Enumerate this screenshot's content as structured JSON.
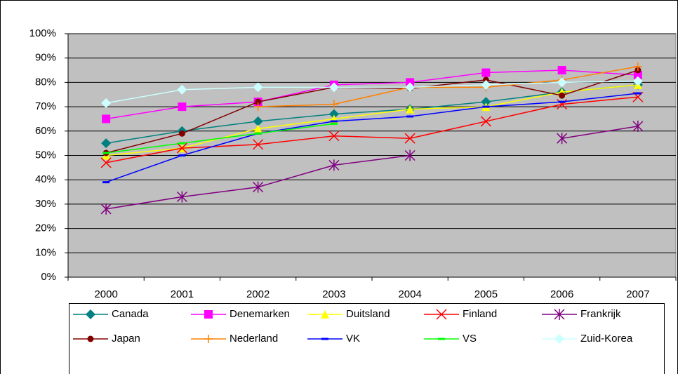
{
  "chart_data": {
    "type": "line",
    "categories": [
      "2000",
      "2001",
      "2002",
      "2003",
      "2004",
      "2005",
      "2006",
      "2007"
    ],
    "ylim": [
      0,
      100
    ],
    "yticks": [
      {
        "value": 0,
        "label": "0%"
      },
      {
        "value": 10,
        "label": "10%"
      },
      {
        "value": 20,
        "label": "20%"
      },
      {
        "value": 30,
        "label": "30%"
      },
      {
        "value": 40,
        "label": "40%"
      },
      {
        "value": 50,
        "label": "50%"
      },
      {
        "value": 60,
        "label": "60%"
      },
      {
        "value": 70,
        "label": "70%"
      },
      {
        "value": 80,
        "label": "80%"
      },
      {
        "value": 90,
        "label": "90%"
      },
      {
        "value": 100,
        "label": "100%"
      }
    ],
    "grid": true,
    "plot_background": "#c0c0c0",
    "legend": "bottom",
    "series": [
      {
        "name": "Canada",
        "color": "#008080",
        "marker": "diamond",
        "values": [
          55,
          60,
          64,
          67,
          69,
          72,
          76,
          79
        ]
      },
      {
        "name": "Denemarken",
        "color": "#ff00ff",
        "marker": "square",
        "values": [
          65,
          70,
          72,
          79,
          80,
          84,
          85,
          83
        ]
      },
      {
        "name": "Duitsland",
        "color": "#ffff00",
        "marker": "triangle",
        "values": [
          50,
          53,
          61,
          65,
          69,
          70,
          76,
          79
        ]
      },
      {
        "name": "Finland",
        "color": "#ff0000",
        "marker": "x",
        "values": [
          47,
          53,
          54.5,
          58,
          57,
          64,
          71,
          74
        ]
      },
      {
        "name": "Frankrijk",
        "color": "#800080",
        "marker": "star",
        "values": [
          28,
          33,
          37,
          46,
          50,
          null,
          57,
          62
        ]
      },
      {
        "name": "Japan",
        "color": "#800000",
        "marker": "circle",
        "values": [
          51,
          59,
          72,
          78,
          77.5,
          81,
          74.6,
          85
        ]
      },
      {
        "name": "Nederland",
        "color": "#ff8000",
        "marker": "plus",
        "values": [
          null,
          null,
          70,
          71,
          78,
          78,
          81,
          86.5
        ]
      },
      {
        "name": "VK",
        "color": "#0000ff",
        "marker": "dash",
        "values": [
          39,
          50,
          59,
          64,
          66,
          70,
          72,
          75.5
        ]
      },
      {
        "name": "VS",
        "color": "#00ff00",
        "marker": "dash",
        "values": [
          51,
          55,
          59,
          63,
          null,
          null,
          null,
          null
        ]
      },
      {
        "name": "Zuid-Korea",
        "color": "#ccffff",
        "marker": "diamond",
        "values": [
          71.5,
          77,
          78,
          78,
          78,
          79,
          80,
          80.5
        ]
      }
    ]
  }
}
